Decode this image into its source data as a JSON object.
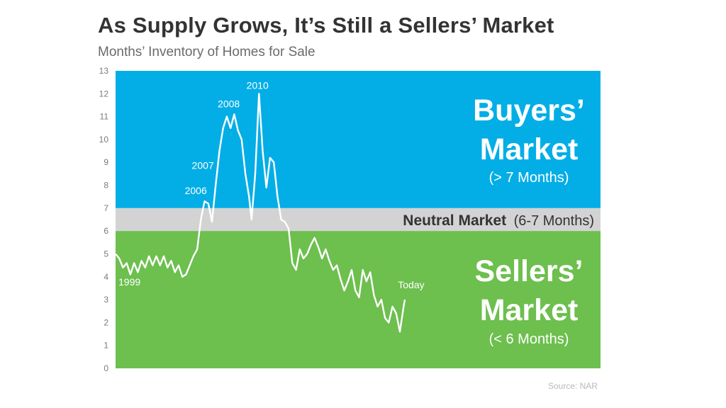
{
  "title": "As Supply Grows, It’s Still a Sellers’ Market",
  "subtitle": "Months’ Inventory of Homes for Sale",
  "source": "Source: NAR",
  "colors": {
    "buyers_zone": "#03aee6",
    "neutral_zone": "#d3d3d3",
    "sellers_zone": "#6dbf4e",
    "line": "#ffffff"
  },
  "zones": {
    "buyers": {
      "title_line1": "Buyers’",
      "title_line2": "Market",
      "note": "(> 7 Months)"
    },
    "neutral": {
      "title": "Neutral Market",
      "note": "(6-7 Months)"
    },
    "sellers": {
      "title_line1": "Sellers’",
      "title_line2": "Market",
      "note": "(< 6 Months)"
    }
  },
  "chart_data": {
    "type": "line",
    "title": "As Supply Grows, It’s Still a Sellers’ Market",
    "subtitle": "Months’ Inventory of Homes for Sale",
    "ylim": [
      0,
      13
    ],
    "yticks": [
      0,
      1,
      2,
      3,
      4,
      5,
      6,
      7,
      8,
      9,
      10,
      11,
      12,
      13
    ],
    "bands": [
      {
        "name": "Sellers’ Market",
        "from": 0,
        "to": 6
      },
      {
        "name": "Neutral Market",
        "from": 6,
        "to": 7
      },
      {
        "name": "Buyers’ Market",
        "from": 7,
        "to": 13
      }
    ],
    "annotations": [
      {
        "label": "1999",
        "x": 1999.0,
        "y": 4.3
      },
      {
        "label": "2006",
        "x": 2006.5,
        "y": 7.3
      },
      {
        "label": "2007",
        "x": 2007.3,
        "y": 8.4
      },
      {
        "label": "2008",
        "x": 2008.5,
        "y": 11.1
      },
      {
        "label": "2010",
        "x": 2010.6,
        "y": 11.9
      },
      {
        "label": "Today",
        "x": 2022.3,
        "y": 3.0
      }
    ],
    "x_start": 1999,
    "x_end": 2022.4,
    "series": [
      {
        "values": [
          [
            1999.0,
            5.0
          ],
          [
            1999.3,
            4.8
          ],
          [
            1999.6,
            4.4
          ],
          [
            1999.9,
            4.6
          ],
          [
            2000.2,
            4.1
          ],
          [
            2000.5,
            4.6
          ],
          [
            2000.8,
            4.2
          ],
          [
            2001.1,
            4.7
          ],
          [
            2001.4,
            4.4
          ],
          [
            2001.7,
            4.9
          ],
          [
            2002.0,
            4.5
          ],
          [
            2002.3,
            4.9
          ],
          [
            2002.6,
            4.5
          ],
          [
            2002.9,
            4.9
          ],
          [
            2003.2,
            4.4
          ],
          [
            2003.5,
            4.7
          ],
          [
            2003.8,
            4.2
          ],
          [
            2004.1,
            4.5
          ],
          [
            2004.4,
            4.0
          ],
          [
            2004.7,
            4.1
          ],
          [
            2005.0,
            4.5
          ],
          [
            2005.3,
            4.9
          ],
          [
            2005.6,
            5.2
          ],
          [
            2005.9,
            6.5
          ],
          [
            2006.2,
            7.3
          ],
          [
            2006.5,
            7.2
          ],
          [
            2006.8,
            6.4
          ],
          [
            2007.1,
            8.0
          ],
          [
            2007.4,
            9.5
          ],
          [
            2007.7,
            10.5
          ],
          [
            2008.0,
            11.0
          ],
          [
            2008.3,
            10.5
          ],
          [
            2008.6,
            11.1
          ],
          [
            2008.9,
            10.4
          ],
          [
            2009.2,
            10.0
          ],
          [
            2009.5,
            8.5
          ],
          [
            2009.8,
            7.5
          ],
          [
            2010.0,
            6.5
          ],
          [
            2010.3,
            8.5
          ],
          [
            2010.6,
            12.0
          ],
          [
            2010.9,
            9.5
          ],
          [
            2011.2,
            7.9
          ],
          [
            2011.5,
            9.2
          ],
          [
            2011.8,
            9.0
          ],
          [
            2012.1,
            7.5
          ],
          [
            2012.4,
            6.5
          ],
          [
            2012.7,
            6.4
          ],
          [
            2013.0,
            6.1
          ],
          [
            2013.3,
            4.6
          ],
          [
            2013.6,
            4.3
          ],
          [
            2013.9,
            5.2
          ],
          [
            2014.2,
            4.8
          ],
          [
            2014.5,
            5.0
          ],
          [
            2014.8,
            5.4
          ],
          [
            2015.1,
            5.7
          ],
          [
            2015.4,
            5.3
          ],
          [
            2015.7,
            4.8
          ],
          [
            2016.0,
            5.2
          ],
          [
            2016.3,
            4.7
          ],
          [
            2016.6,
            4.3
          ],
          [
            2016.9,
            4.5
          ],
          [
            2017.2,
            3.9
          ],
          [
            2017.5,
            3.4
          ],
          [
            2017.8,
            3.8
          ],
          [
            2018.1,
            4.3
          ],
          [
            2018.4,
            3.4
          ],
          [
            2018.7,
            3.1
          ],
          [
            2019.0,
            4.3
          ],
          [
            2019.3,
            3.8
          ],
          [
            2019.6,
            4.2
          ],
          [
            2019.9,
            3.2
          ],
          [
            2020.2,
            2.7
          ],
          [
            2020.5,
            3.0
          ],
          [
            2020.8,
            2.2
          ],
          [
            2021.1,
            2.0
          ],
          [
            2021.4,
            2.7
          ],
          [
            2021.7,
            2.4
          ],
          [
            2022.0,
            1.6
          ],
          [
            2022.3,
            2.7
          ],
          [
            2022.4,
            3.0
          ]
        ]
      }
    ]
  }
}
